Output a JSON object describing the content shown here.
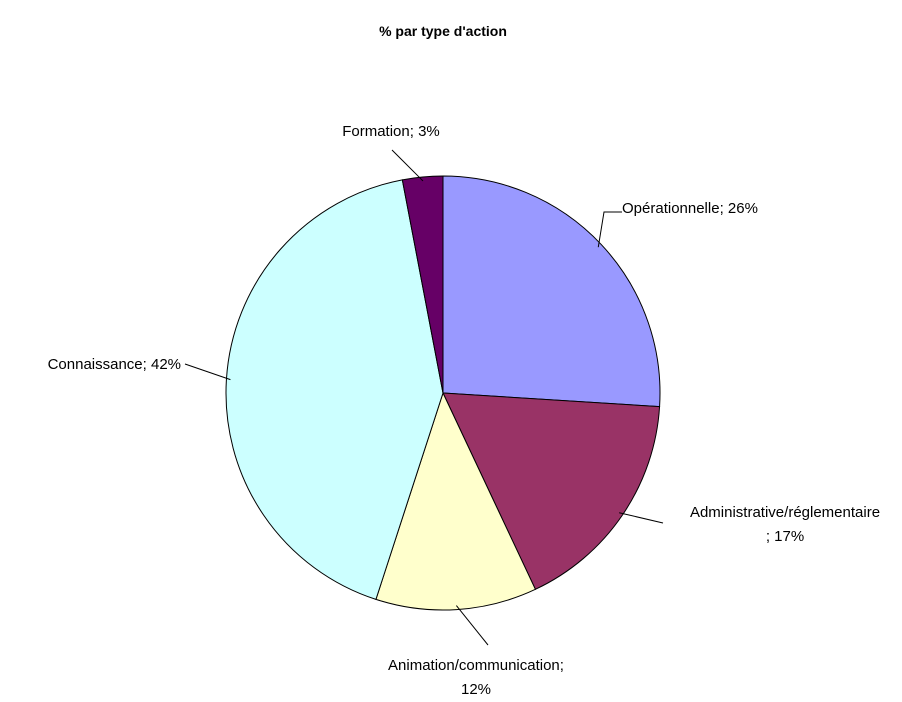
{
  "chart_data": {
    "type": "pie",
    "title": "% par type d'action",
    "categories": [
      "Opérationnelle",
      "Administrative/réglementaire",
      "Animation/communication",
      "Connaissance",
      "Formation"
    ],
    "values": [
      26,
      17,
      12,
      42,
      3
    ],
    "value_labels": [
      [
        "Opérationnelle; 26%"
      ],
      [
        "Administrative/réglementaire",
        "; 17%"
      ],
      [
        "Animation/communication;",
        "12%"
      ],
      [
        "Connaissance; 42%"
      ],
      [
        "Formation; 3%"
      ]
    ],
    "colors": [
      "#9999ff",
      "#993366",
      "#ffffcc",
      "#ccffff",
      "#660066"
    ]
  }
}
